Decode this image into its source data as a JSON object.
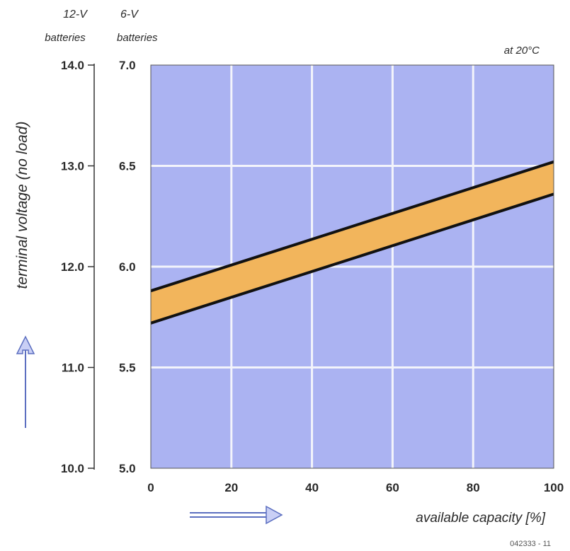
{
  "chart_data": {
    "type": "area",
    "note": "at 20°C",
    "xlabel": "available capacity [%]",
    "ylabel": "terminal voltage (no load)",
    "x_axis": {
      "range": [
        0,
        100
      ],
      "ticks": [
        0,
        20,
        40,
        60,
        80,
        100
      ],
      "tick_labels": [
        "0",
        "20",
        "40",
        "60",
        "80",
        "100"
      ],
      "grid": true
    },
    "y_axis_6v": {
      "heading_line1": "6-V",
      "heading_line2": "batteries",
      "range": [
        5.0,
        7.0
      ],
      "ticks": [
        5.0,
        5.5,
        6.0,
        6.5,
        7.0
      ],
      "tick_labels": [
        "5.0",
        "5.5",
        "6.0",
        "6.5",
        "7.0"
      ]
    },
    "y_axis_12v": {
      "heading_line1": "12-V",
      "heading_line2": "batteries",
      "range": [
        10.0,
        14.0
      ],
      "ticks": [
        10.0,
        11.0,
        12.0,
        13.0,
        14.0
      ],
      "tick_labels": [
        "10.0",
        "11.0",
        "12.0",
        "13.0",
        "14.0"
      ]
    },
    "band": {
      "upper": {
        "x": [
          0,
          100
        ],
        "y": [
          5.88,
          6.52
        ]
      },
      "lower": {
        "x": [
          0,
          100
        ],
        "y": [
          5.72,
          6.36
        ]
      }
    },
    "colors": {
      "plot_bg": "#abb3f2",
      "grid": "#f3f4fb",
      "band_fill": "#f2b55c",
      "band_line": "#111111",
      "arrow": "#5c6fc0"
    },
    "figure_id": "042333 - 11"
  }
}
